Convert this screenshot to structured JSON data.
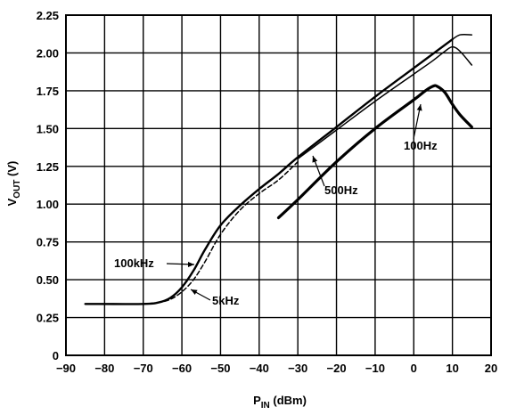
{
  "chart_data": {
    "type": "line",
    "title": "",
    "xlabel": {
      "main": "P",
      "sub": "IN",
      "rest": " (dBm)"
    },
    "ylabel": {
      "main": "V",
      "sub": "OUT",
      "rest": " (V)"
    },
    "xlim": [
      -90,
      20
    ],
    "ylim": [
      0,
      2.25
    ],
    "xticks": [
      -90,
      -80,
      -70,
      -60,
      -50,
      -40,
      -30,
      -20,
      -10,
      0,
      10,
      20
    ],
    "xtick_labels": [
      "−90",
      "−80",
      "−70",
      "−60",
      "−50",
      "−40",
      "−30",
      "−20",
      "−10",
      "0",
      "10",
      "20"
    ],
    "yticks": [
      0,
      0.25,
      0.5,
      0.75,
      1.0,
      1.25,
      1.5,
      1.75,
      2.0,
      2.25
    ],
    "ytick_labels": [
      "0",
      "0.25",
      "0.50",
      "0.75",
      "1.00",
      "1.25",
      "1.50",
      "1.75",
      "2.00",
      "2.25"
    ],
    "grid": true,
    "legend": "none (curves labeled inline)",
    "series": [
      {
        "name": "100kHz",
        "style": "solid-thick",
        "x": [
          -85,
          -70,
          -66,
          -63,
          -60,
          -57,
          -54,
          -50,
          -45,
          -40,
          -35,
          -30,
          -20,
          -10,
          0,
          10
        ],
        "y": [
          0.34,
          0.34,
          0.35,
          0.38,
          0.45,
          0.56,
          0.7,
          0.86,
          0.99,
          1.1,
          1.2,
          1.31,
          1.51,
          1.71,
          1.9,
          2.09
        ]
      },
      {
        "name": "5kHz",
        "style": "dashed",
        "x": [
          -70,
          -66,
          -63,
          -60,
          -57,
          -54,
          -50,
          -45,
          -40,
          -35,
          -30
        ],
        "y": [
          0.34,
          0.35,
          0.37,
          0.42,
          0.5,
          0.62,
          0.8,
          0.96,
          1.07,
          1.16,
          1.28
        ]
      },
      {
        "name": "500Hz",
        "style": "solid-thin",
        "x": [
          -30,
          -20,
          -10,
          0,
          5,
          8,
          10,
          12,
          15
        ],
        "y": [
          1.3,
          1.49,
          1.68,
          1.86,
          1.95,
          2.01,
          2.04,
          2.01,
          1.92
        ]
      },
      {
        "name": "100Hz",
        "style": "solid-thicker",
        "x": [
          -35,
          -30,
          -20,
          -10,
          0,
          3,
          5,
          6,
          8,
          10,
          12,
          15
        ],
        "y": [
          0.91,
          1.03,
          1.28,
          1.5,
          1.69,
          1.75,
          1.78,
          1.78,
          1.74,
          1.66,
          1.59,
          1.51
        ]
      },
      {
        "name": "",
        "style": "solid-thin-top",
        "x": [
          10,
          12,
          15
        ],
        "y": [
          2.09,
          2.12,
          2.12
        ]
      }
    ],
    "annotations": [
      {
        "text": "100kHz",
        "target_series": "100kHz"
      },
      {
        "text": "5kHz",
        "target_series": "5kHz"
      },
      {
        "text": "500Hz",
        "target_series": "500Hz"
      },
      {
        "text": "100Hz",
        "target_series": "100Hz"
      }
    ]
  }
}
